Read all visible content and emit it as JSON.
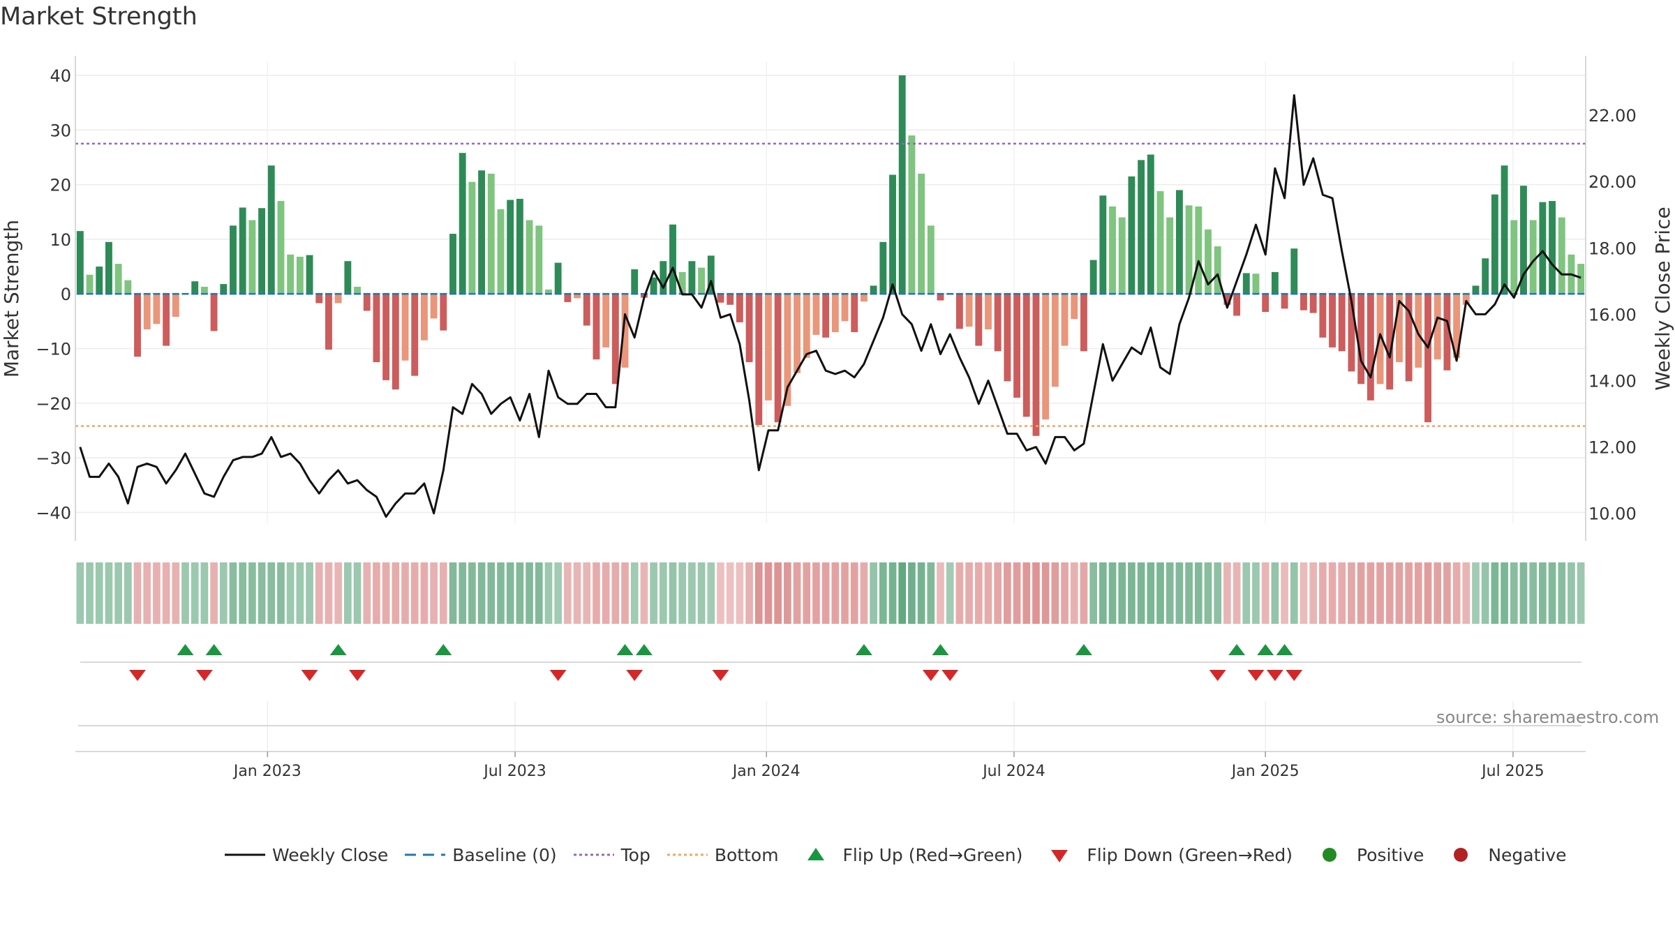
{
  "title": "Market Strength",
  "source_label": "source: sharemaestro.com",
  "colors": {
    "strong_green": "#2e8b57",
    "light_green": "#7fc47f",
    "strong_red": "#cd5c5c",
    "light_red": "#e9967a",
    "price_line": "#111111",
    "baseline": "#1f77b4",
    "top": "#9467bd",
    "bottom": "#f4a460",
    "flip_up": "#1a9641",
    "flip_down": "#d62728",
    "positive": "#228b22",
    "negative": "#b22222"
  },
  "chart_data": {
    "type": "bar",
    "title": "Market Strength",
    "ylabel": "Market Strength",
    "y2label": "Weekly Close Price",
    "ylim": [
      -42,
      40
    ],
    "y2lim": [
      9.7,
      23.2
    ],
    "yticks": [
      40,
      30,
      20,
      10,
      0,
      -10,
      -20,
      -30,
      -40
    ],
    "ytick_labels": [
      "40",
      "30",
      "20",
      "10",
      "0",
      "−10",
      "−20",
      "−30",
      "−40"
    ],
    "y2ticks": [
      22,
      20,
      18,
      16,
      14,
      12,
      10
    ],
    "y2tick_labels": [
      "22.00",
      "20.00",
      "18.00",
      "16.00",
      "14.00",
      "12.00",
      "10.00"
    ],
    "xticks": [
      {
        "week": 19.6,
        "label": "Jan 2023"
      },
      {
        "week": 45.5,
        "label": "Jul 2023"
      },
      {
        "week": 71.8,
        "label": "Jan 2024"
      },
      {
        "week": 97.7,
        "label": "Jul 2024"
      },
      {
        "week": 124.0,
        "label": "Jan 2025"
      },
      {
        "week": 149.9,
        "label": "Jul 2025"
      }
    ],
    "top_level": 27.5,
    "bottom_level": -24.2,
    "baseline": 0,
    "strength": [
      11.5,
      3.5,
      5,
      9.5,
      5.5,
      2.5,
      -11.5,
      -6.5,
      -5.5,
      -9.5,
      -4.2,
      0,
      2.3,
      1.3,
      -6.8,
      1.8,
      12.5,
      15.8,
      13.5,
      15.7,
      23.5,
      17,
      7.2,
      6.8,
      7.1,
      -1.7,
      -10.2,
      -1.7,
      6,
      1.3,
      -3.1,
      -12.5,
      -15.8,
      -17.5,
      -12.2,
      -15,
      -8.5,
      -4.5,
      -6.7,
      11,
      25.8,
      20.5,
      22.6,
      22,
      15.5,
      17.2,
      17.4,
      13.5,
      12.5,
      0.8,
      5.7,
      -1.5,
      -0.8,
      -5.8,
      -12,
      -9.8,
      -16.5,
      -13.5,
      4.5,
      -0.7,
      3,
      6,
      12.7,
      4,
      6,
      4.8,
      7,
      -1.6,
      -2,
      -5.2,
      -12.5,
      -24,
      -19.5,
      -23.5,
      -20.5,
      -14.5,
      -11.7,
      -7.5,
      -8,
      -7,
      -5,
      -7,
      -1.4,
      1.5,
      9.5,
      21.8,
      40,
      29,
      22,
      12.5,
      -1.2,
      0,
      -6.4,
      -6,
      -9.5,
      -6.5,
      -10.5,
      -16,
      -19,
      -22.5,
      -26,
      -23,
      -17,
      -9.5,
      -4.6,
      -10.5,
      6.2,
      18,
      16,
      14,
      21.5,
      24.5,
      25.5,
      18.8,
      14,
      19,
      16.2,
      16,
      11.8,
      8.7,
      -2,
      -4,
      3.8,
      3.7,
      -3.3,
      4,
      -2.7,
      8.3,
      -3,
      -3.5,
      -8,
      -9.8,
      -10.5,
      -14.2,
      -16.5,
      -19.5,
      -16.5,
      -17.5,
      -12.5,
      -16,
      -13.5,
      -23.5,
      -12,
      -14,
      -11.7,
      -2,
      1.5,
      6.5,
      18.2,
      23.5,
      13.5,
      19.8,
      13.5,
      16.8,
      17,
      14,
      7.2,
      5.5
    ],
    "weekly_close": [
      12.0,
      11.1,
      11.1,
      11.5,
      11.1,
      10.3,
      11.4,
      11.5,
      11.4,
      10.9,
      11.3,
      11.8,
      11.2,
      10.6,
      10.5,
      11.1,
      11.6,
      11.7,
      11.7,
      11.8,
      12.3,
      11.7,
      11.8,
      11.5,
      11.0,
      10.6,
      11.0,
      11.3,
      10.9,
      11.0,
      10.7,
      10.5,
      9.9,
      10.3,
      10.6,
      10.6,
      10.9,
      10.0,
      11.3,
      13.2,
      13.0,
      13.9,
      13.6,
      13.0,
      13.3,
      13.5,
      12.8,
      13.6,
      12.3,
      14.3,
      13.5,
      13.3,
      13.3,
      13.6,
      13.6,
      13.2,
      13.2,
      16.0,
      15.3,
      16.5,
      17.3,
      16.8,
      17.4,
      16.6,
      16.6,
      16.2,
      17.0,
      15.9,
      16.0,
      15.1,
      13.4,
      11.3,
      12.5,
      12.5,
      13.8,
      14.3,
      14.8,
      14.9,
      14.3,
      14.2,
      14.3,
      14.1,
      14.5,
      15.2,
      15.9,
      16.9,
      16.0,
      15.7,
      14.9,
      15.7,
      14.8,
      15.4,
      14.7,
      14.1,
      13.3,
      14.0,
      13.2,
      12.4,
      12.4,
      11.9,
      12.0,
      11.5,
      12.3,
      12.3,
      11.9,
      12.1,
      13.6,
      15.1,
      14.0,
      14.5,
      15.0,
      14.8,
      15.6,
      14.4,
      14.2,
      15.7,
      16.5,
      17.6,
      16.9,
      17.2,
      16.2,
      17.0,
      17.8,
      18.7,
      17.8,
      20.4,
      19.5,
      22.6,
      19.9,
      20.7,
      19.6,
      19.5,
      17.9,
      16.4,
      14.6,
      14.1,
      15.4,
      14.7,
      16.4,
      16.1,
      15.4,
      15.0,
      15.9,
      15.8,
      14.6,
      16.4,
      16.0,
      16.0,
      16.3,
      16.9,
      16.5,
      17.2,
      17.6,
      17.9,
      17.5,
      17.2,
      17.2,
      17.1
    ],
    "heat_intensity": [
      0.55,
      0.55,
      0.55,
      0.55,
      0.55,
      0.55,
      0.55,
      0.55,
      0.55,
      0.55,
      0.55,
      0.55,
      0.55,
      0.55,
      0.55,
      0.55,
      0.7,
      0.7,
      0.7,
      0.7,
      0.7,
      0.7,
      0.55,
      0.55,
      0.55,
      0.55,
      0.55,
      0.5,
      0.55,
      0.55,
      0.55,
      0.6,
      0.6,
      0.6,
      0.6,
      0.6,
      0.6,
      0.55,
      0.55,
      0.75,
      0.75,
      0.75,
      0.75,
      0.75,
      0.75,
      0.75,
      0.75,
      0.75,
      0.75,
      0.55,
      0.5,
      0.5,
      0.5,
      0.5,
      0.6,
      0.6,
      0.6,
      0.6,
      0.5,
      0.5,
      0.55,
      0.55,
      0.6,
      0.55,
      0.55,
      0.55,
      0.5,
      0.4,
      0.4,
      0.4,
      0.55,
      0.85,
      0.85,
      0.85,
      0.8,
      0.7,
      0.7,
      0.7,
      0.7,
      0.7,
      0.7,
      0.7,
      0.6,
      0.6,
      0.8,
      0.85,
      1,
      0.9,
      0.85,
      0.75,
      0.45,
      0.5,
      0.6,
      0.6,
      0.6,
      0.6,
      0.65,
      0.75,
      0.75,
      0.8,
      0.85,
      0.8,
      0.75,
      0.65,
      0.55,
      0.65,
      0.7,
      0.8,
      0.8,
      0.8,
      0.8,
      0.8,
      0.8,
      0.8,
      0.75,
      0.75,
      0.75,
      0.75,
      0.7,
      0.65,
      0.5,
      0.5,
      0.55,
      0.55,
      0.5,
      0.6,
      0.45,
      0.6,
      0.45,
      0.5,
      0.6,
      0.6,
      0.6,
      0.65,
      0.7,
      0.7,
      0.7,
      0.7,
      0.7,
      0.7,
      0.7,
      0.75,
      0.7,
      0.7,
      0.6,
      0.5,
      0.5,
      0.6,
      0.8,
      0.8,
      0.7,
      0.75,
      0.7,
      0.75,
      0.75,
      0.7,
      0.6,
      0.55
    ],
    "flip_up_weeks": [
      11,
      14,
      27,
      38,
      57,
      59,
      82,
      90,
      105,
      121,
      124,
      126
    ],
    "flip_down_weeks": [
      6,
      13,
      24,
      29,
      50,
      58,
      67,
      89,
      91,
      119,
      123,
      125,
      127
    ],
    "legend": [
      "Weekly Close",
      "Baseline (0)",
      "Top",
      "Bottom",
      "Flip Up (Red→Green)",
      "Flip Down (Green→Red)",
      "Positive",
      "Negative"
    ]
  }
}
